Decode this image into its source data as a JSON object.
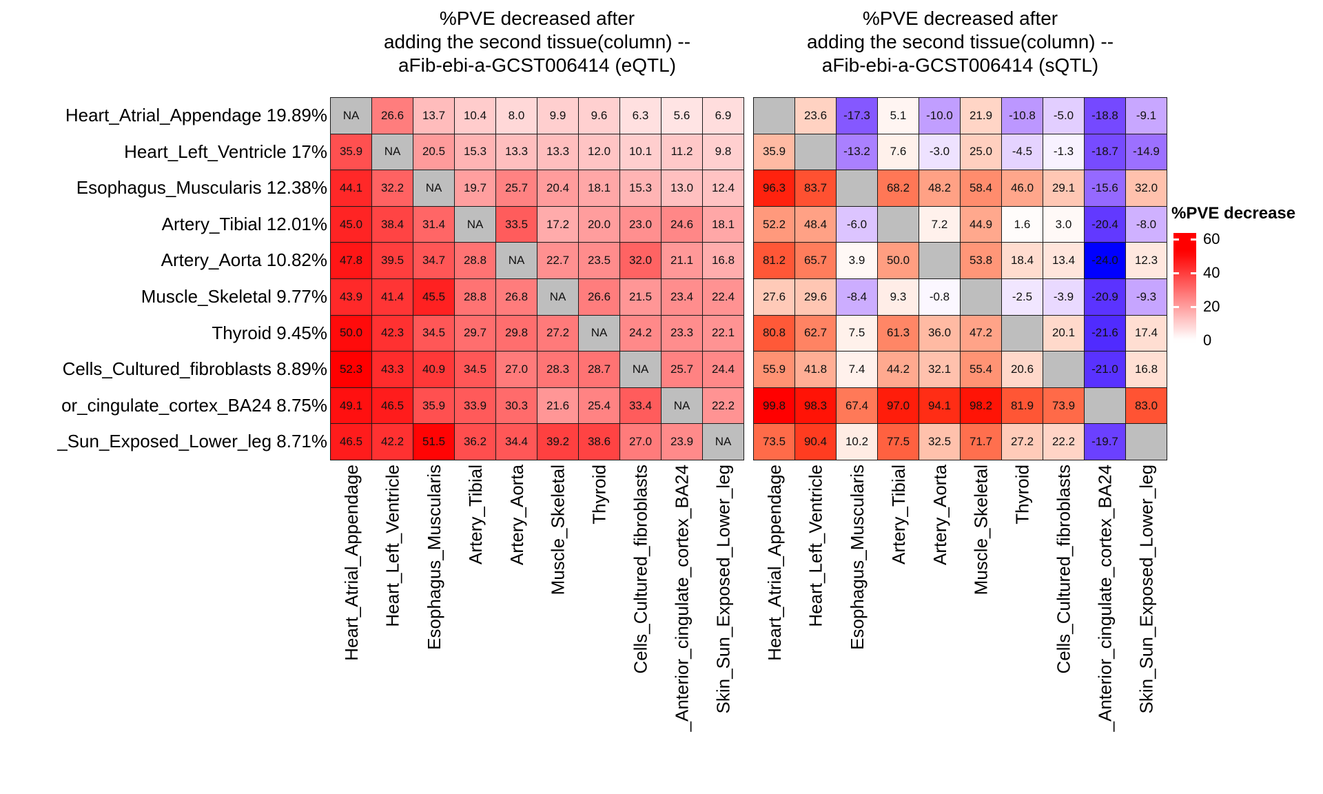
{
  "panels": {
    "left": {
      "title_lines": [
        "%PVE decreased after",
        "adding the second tissue(column) --",
        "aFib-ebi-a-GCST006414 (eQTL)"
      ]
    },
    "right": {
      "title_lines": [
        "%PVE decreased after",
        "adding the second tissue(column) --",
        "aFib-ebi-a-GCST006414 (sQTL)"
      ]
    }
  },
  "row_labels": [
    "Heart_Atrial_Appendage 19.89%",
    "Heart_Left_Ventricle 17%",
    "Esophagus_Muscularis 12.38%",
    "Artery_Tibial 12.01%",
    "Artery_Aorta 10.82%",
    "Muscle_Skeletal 9.77%",
    "Thyroid 9.45%",
    "Cells_Cultured_fibroblasts 8.89%",
    "or_cingulate_cortex_BA24 8.75%",
    "_Sun_Exposed_Lower_leg 8.71%"
  ],
  "col_labels": [
    "Heart_Atrial_Appendage",
    "Heart_Left_Ventricle",
    "Esophagus_Muscularis",
    "Artery_Tibial",
    "Artery_Aorta",
    "Muscle_Skeletal",
    "Thyroid",
    "Cells_Cultured_fibroblasts",
    "_Anterior_cingulate_cortex_BA24",
    "Skin_Sun_Exposed_Lower_leg"
  ],
  "na_text": "NA",
  "legend": {
    "title": "%PVE decrease",
    "ticks": [
      "60",
      "40",
      "20",
      "0"
    ]
  },
  "chart_data": {
    "type": "heatmap",
    "panels": [
      "eQTL",
      "sQTL"
    ],
    "na_color": "#BEBEBE",
    "grid_color": "#1a1a1a",
    "eqtl_scale": {
      "min": 0,
      "max": 52.3,
      "low_color": "#FFFFFF",
      "high_color": "#FF0000",
      "interpolation": "rgb"
    },
    "sqtl_scale": {
      "neg_limit": -24,
      "pos_limit": 99.8,
      "low_color": "#0000FF",
      "mid_color": "#FFFFFF",
      "high_color": "#FF0000",
      "interpolation": "lab"
    },
    "legend_axis": {
      "title": "%PVE decrease",
      "tick_values": [
        60,
        40,
        20,
        0
      ]
    },
    "eqtl_matrix": [
      [
        null,
        26.6,
        13.7,
        10.4,
        8.0,
        9.9,
        9.6,
        6.3,
        5.6,
        6.9
      ],
      [
        35.9,
        null,
        20.5,
        15.3,
        13.3,
        13.3,
        12.0,
        10.1,
        11.2,
        9.8
      ],
      [
        44.1,
        32.2,
        null,
        19.7,
        25.7,
        20.4,
        18.1,
        15.3,
        13.0,
        12.4
      ],
      [
        45.0,
        38.4,
        31.4,
        null,
        33.5,
        17.2,
        20.0,
        23.0,
        24.6,
        18.1
      ],
      [
        47.8,
        39.5,
        34.7,
        28.8,
        null,
        22.7,
        23.5,
        32.0,
        21.1,
        16.8
      ],
      [
        43.9,
        41.4,
        45.5,
        28.8,
        26.8,
        null,
        26.6,
        21.5,
        23.4,
        22.4
      ],
      [
        50.0,
        42.3,
        34.5,
        29.7,
        29.8,
        27.2,
        null,
        24.2,
        23.3,
        22.1
      ],
      [
        52.3,
        43.3,
        40.9,
        34.5,
        27.0,
        28.3,
        28.7,
        null,
        25.7,
        24.4
      ],
      [
        49.1,
        46.5,
        35.9,
        33.9,
        30.3,
        21.6,
        25.4,
        33.4,
        null,
        22.2
      ],
      [
        46.5,
        42.2,
        51.5,
        36.2,
        34.4,
        39.2,
        38.6,
        27.0,
        23.9,
        null
      ]
    ],
    "sqtl_matrix": [
      [
        null,
        23.6,
        -17.3,
        5.1,
        -10.0,
        21.9,
        -10.8,
        -5.0,
        -18.8,
        -9.1
      ],
      [
        35.9,
        null,
        -13.2,
        7.6,
        -3.0,
        25.0,
        -4.5,
        -1.3,
        -18.7,
        -14.9
      ],
      [
        96.3,
        83.7,
        null,
        68.2,
        48.2,
        58.4,
        46.0,
        29.1,
        -15.6,
        32.0
      ],
      [
        52.2,
        48.4,
        -6.0,
        null,
        7.2,
        44.9,
        1.6,
        3.0,
        -20.4,
        -8.0
      ],
      [
        81.2,
        65.7,
        3.9,
        50.0,
        null,
        53.8,
        18.4,
        13.4,
        -24.0,
        12.3
      ],
      [
        27.6,
        29.6,
        -8.4,
        9.3,
        -0.8,
        null,
        -2.5,
        -3.9,
        -20.9,
        -9.3
      ],
      [
        80.8,
        62.7,
        7.5,
        61.3,
        36.0,
        47.2,
        null,
        20.1,
        -21.6,
        17.4
      ],
      [
        55.9,
        41.8,
        7.4,
        44.2,
        32.1,
        55.4,
        20.6,
        null,
        -21.0,
        16.8
      ],
      [
        99.8,
        98.3,
        67.4,
        97.0,
        94.1,
        98.2,
        81.9,
        73.9,
        null,
        83.0
      ],
      [
        73.5,
        90.4,
        10.2,
        77.5,
        32.5,
        71.7,
        27.2,
        22.2,
        -19.7,
        null
      ]
    ]
  }
}
